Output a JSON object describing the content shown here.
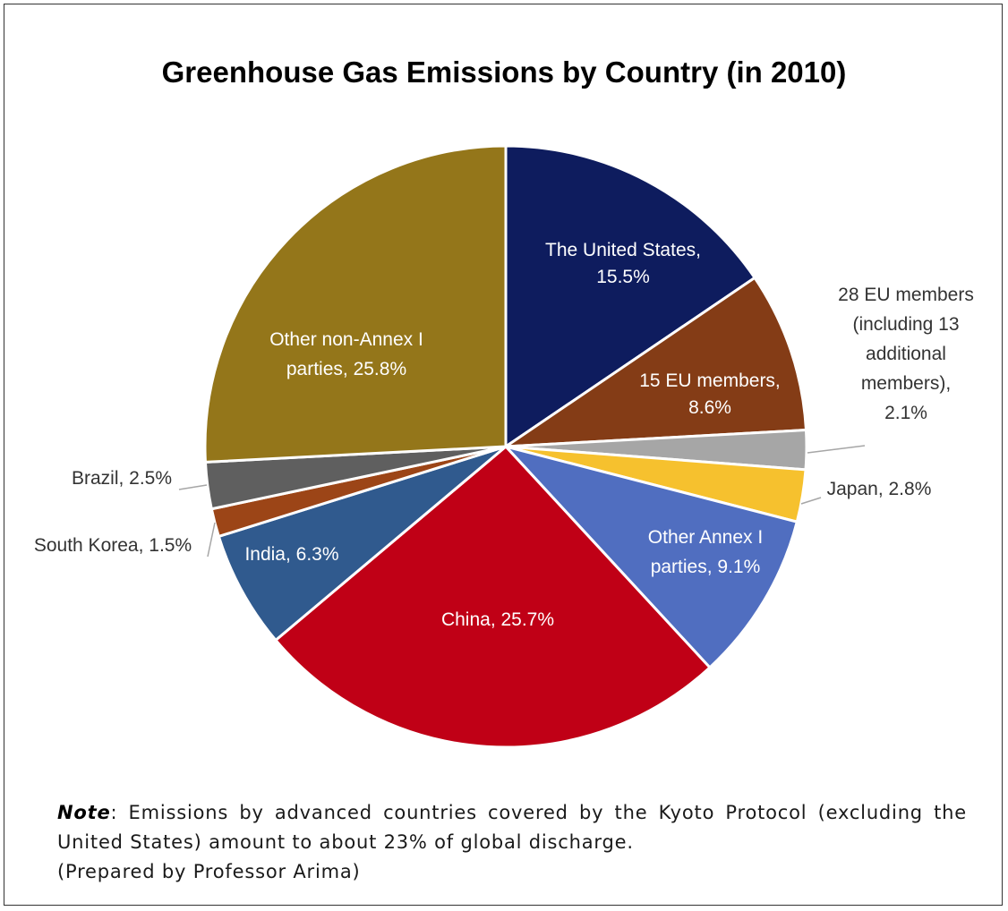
{
  "chart_data": {
    "type": "pie",
    "title": "Greenhouse Gas Emissions by Country (in 2010)",
    "slices": [
      {
        "label": "The United States,",
        "pct_text": "15.5%",
        "value": 15.5,
        "color": "#0e1c5e"
      },
      {
        "label": "15 EU members,",
        "pct_text": "8.6%",
        "value": 8.6,
        "color": "#843c16"
      },
      {
        "label": "28 EU members (including 13 additional members),",
        "lines": [
          "28 EU members",
          "(including 13",
          "additional",
          "members),"
        ],
        "pct_text": "2.1%",
        "value": 2.1,
        "color": "#a6a6a6"
      },
      {
        "label": "Japan,",
        "pct_text": "2.8%",
        "value": 2.8,
        "color": "#f6c12e"
      },
      {
        "label": "Other Annex I parties,",
        "lines": [
          "Other Annex I",
          "parties,"
        ],
        "pct_text": "9.1%",
        "value": 9.1,
        "color": "#506ec0"
      },
      {
        "label": "China,",
        "pct_text": "25.7%",
        "value": 25.7,
        "color": "#c00016"
      },
      {
        "label": "India,",
        "pct_text": "6.3%",
        "value": 6.3,
        "color": "#305a8e"
      },
      {
        "label": "South Korea,",
        "pct_text": "1.5%",
        "value": 1.5,
        "color": "#9c4517"
      },
      {
        "label": "Brazil,",
        "pct_text": "2.5%",
        "value": 2.5,
        "color": "#5f5f5f"
      },
      {
        "label": "Other non-Annex I parties,",
        "lines": [
          "Other non-Annex I",
          "parties,"
        ],
        "pct_text": "25.8%",
        "value": 25.8,
        "color": "#94761a"
      }
    ]
  },
  "note": {
    "key": "Note",
    "text": ": Emissions by advanced countries covered by the Kyoto Protocol (excluding the United States) amount to about 23% of global discharge."
  },
  "credit": "(Prepared by Professor Arima)"
}
